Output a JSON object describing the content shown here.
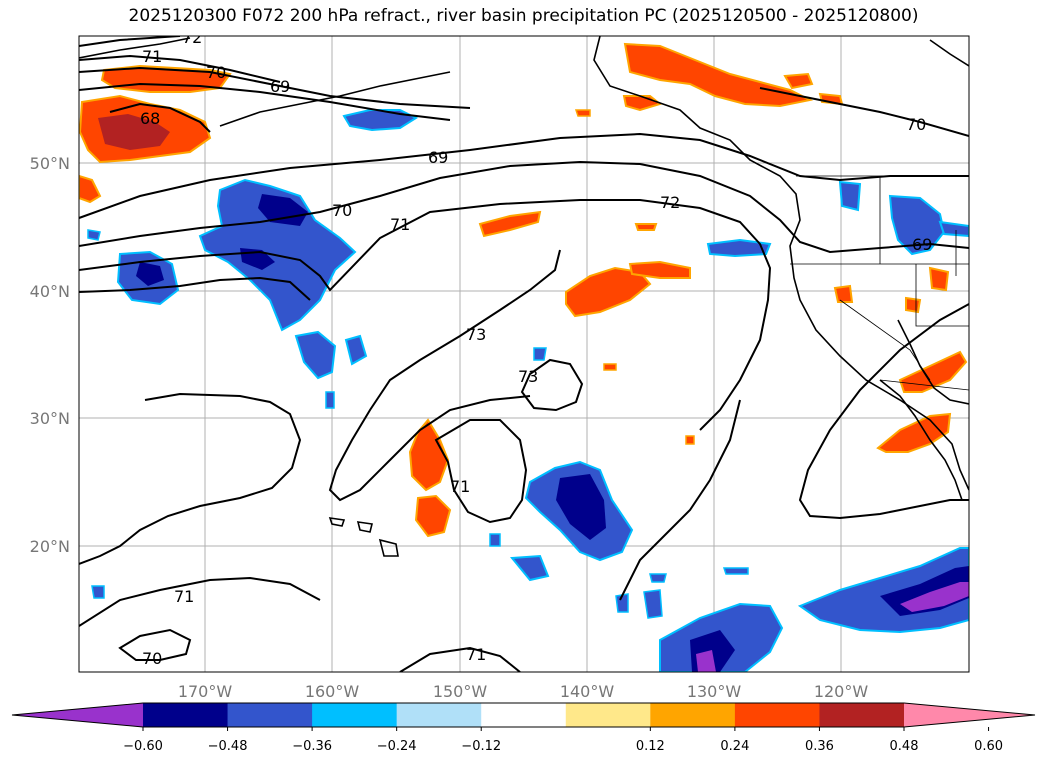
{
  "title": "2025120300 F072 200 hPa refract., river basin precipitation PC (2025120500 - 2025120800)",
  "map": {
    "lat_labels": [
      "50°N",
      "40°N",
      "30°N",
      "20°N"
    ],
    "lon_labels": [
      "170°W",
      "160°W",
      "150°W",
      "140°W",
      "130°W",
      "120°W"
    ],
    "contour_labels": [
      "72",
      "71",
      "70",
      "69",
      "68",
      "69",
      "70",
      "71",
      "72",
      "70",
      "69",
      "73",
      "73",
      "71",
      "71",
      "70",
      "71"
    ]
  },
  "colorbar": {
    "ticks": [
      "−0.60",
      "−0.48",
      "−0.36",
      "−0.24",
      "−0.12",
      "0.12",
      "0.24",
      "0.36",
      "0.48",
      "0.60"
    ],
    "colors": [
      "#9932cc",
      "#00008b",
      "#3355cc",
      "#00bfff",
      "#b0e0f8",
      "#ffffff",
      "#ffe88a",
      "#ffa500",
      "#ff4500",
      "#b22222",
      "#ff88aa"
    ]
  }
}
